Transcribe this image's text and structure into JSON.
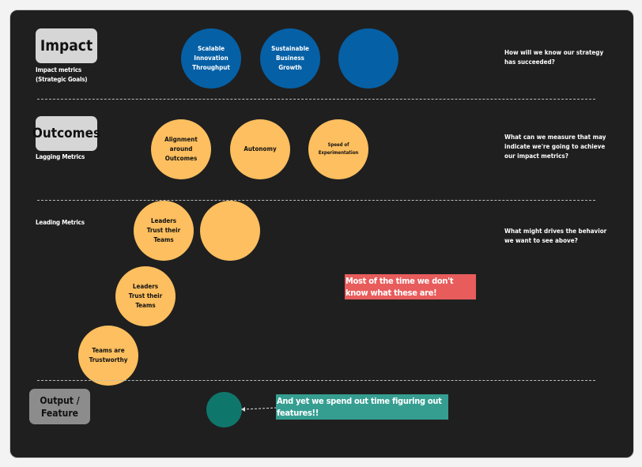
{
  "rows": {
    "impact": {
      "label": "Impact",
      "sublabel_1": "Impact metrics",
      "sublabel_2": "(Strategic Goals)",
      "question": "How will we know our strategy has succeeded?"
    },
    "outcomes": {
      "label": "Outcomes",
      "sublabel": "Lagging Metrics",
      "question": "What can we measure that may indicate we're going to achieve our impact metrics?"
    },
    "leading": {
      "sublabel": "Leading Metrics",
      "question": "What might drives the behavior we want to see above?"
    },
    "output": {
      "label": "Output / Feature"
    }
  },
  "impact_circles": [
    "Scalable Innovation Throughput",
    "Sustainable Business Growth",
    ""
  ],
  "outcome_circles": [
    "Alignment around Outcomes",
    "Autonomy",
    "Speed of Experimentation"
  ],
  "leading_circles": [
    "Leaders Trust their Teams",
    "",
    "Leaders Trust their Teams",
    "Teams are Trustworthy"
  ],
  "notes": {
    "unknown": "Most of the time we don't know what these are!",
    "features": "And yet we spend out time figuring out features!!"
  },
  "colors": {
    "impact": "#0560a6",
    "outcome": "#fdbf5f",
    "feature": "#0f766b",
    "note_red": "#e85c5c",
    "note_teal": "#359e91"
  }
}
